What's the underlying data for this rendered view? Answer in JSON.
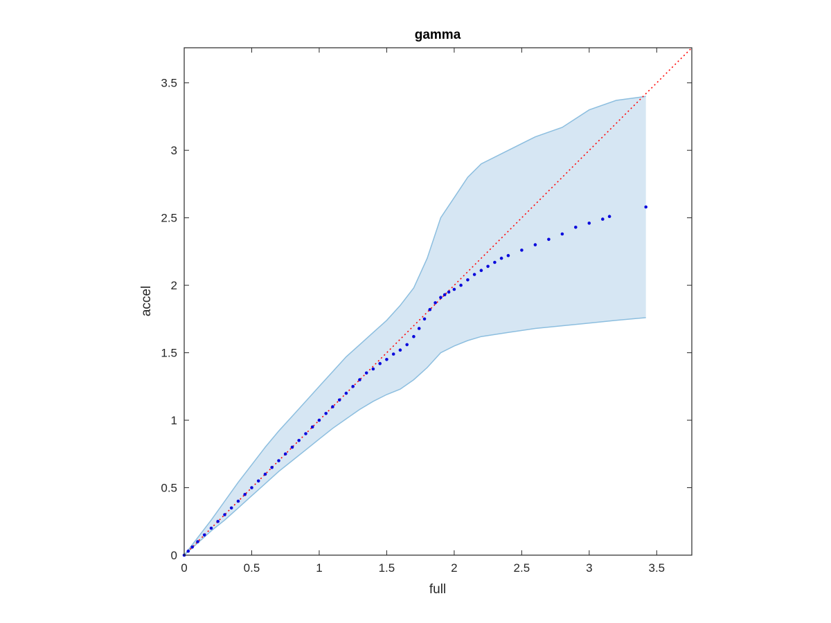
{
  "chart_data": {
    "type": "scatter",
    "title": "gamma",
    "xlabel": "full",
    "ylabel": "accel",
    "xlim": [
      0,
      3.76
    ],
    "ylim": [
      0,
      3.76
    ],
    "x_ticks": [
      0,
      0.5,
      1,
      1.5,
      2,
      2.5,
      3,
      3.5
    ],
    "y_ticks": [
      0,
      0.5,
      1,
      1.5,
      2,
      2.5,
      3,
      3.5
    ],
    "x_tick_labels": [
      "0",
      "0.5",
      "1",
      "1.5",
      "2",
      "2.5",
      "3",
      "3.5"
    ],
    "y_tick_labels": [
      "0",
      "0.5",
      "1",
      "1.5",
      "2",
      "2.5",
      "3",
      "3.5"
    ],
    "grid": false,
    "box": true,
    "colors": {
      "points": "#0a0adc",
      "band_fill": "#d6e6f3",
      "band_edge": "#8cbedf",
      "reference": "#ff0000",
      "axes": "#262626"
    },
    "band": {
      "x": [
        0,
        0.1,
        0.2,
        0.3,
        0.4,
        0.5,
        0.6,
        0.7,
        0.8,
        0.9,
        1.0,
        1.1,
        1.2,
        1.3,
        1.4,
        1.5,
        1.6,
        1.7,
        1.8,
        1.9,
        2.0,
        2.1,
        2.2,
        2.4,
        2.6,
        2.8,
        3.0,
        3.2,
        3.42
      ],
      "upper": [
        0,
        0.13,
        0.26,
        0.4,
        0.54,
        0.67,
        0.8,
        0.92,
        1.03,
        1.14,
        1.25,
        1.36,
        1.47,
        1.56,
        1.65,
        1.74,
        1.85,
        1.98,
        2.2,
        2.5,
        2.65,
        2.8,
        2.9,
        3.0,
        3.1,
        3.17,
        3.3,
        3.37,
        3.4
      ],
      "lower": [
        0,
        0.09,
        0.18,
        0.26,
        0.35,
        0.44,
        0.53,
        0.62,
        0.7,
        0.78,
        0.86,
        0.94,
        1.01,
        1.08,
        1.14,
        1.19,
        1.23,
        1.3,
        1.39,
        1.5,
        1.55,
        1.59,
        1.62,
        1.65,
        1.68,
        1.7,
        1.72,
        1.74,
        1.76
      ]
    },
    "reference_line": {
      "style": "dotted",
      "points": [
        [
          0,
          0
        ],
        [
          3.76,
          3.76
        ]
      ]
    },
    "points": {
      "x": [
        0,
        0.03,
        0.06,
        0.1,
        0.15,
        0.2,
        0.25,
        0.3,
        0.35,
        0.4,
        0.45,
        0.5,
        0.55,
        0.6,
        0.65,
        0.7,
        0.75,
        0.8,
        0.85,
        0.9,
        0.95,
        1.0,
        1.05,
        1.1,
        1.15,
        1.2,
        1.25,
        1.3,
        1.35,
        1.4,
        1.45,
        1.5,
        1.55,
        1.6,
        1.65,
        1.7,
        1.74,
        1.78,
        1.82,
        1.86,
        1.9,
        1.93,
        1.96,
        2.0,
        2.05,
        2.1,
        2.15,
        2.2,
        2.25,
        2.3,
        2.35,
        2.4,
        2.5,
        2.6,
        2.7,
        2.8,
        2.9,
        3.0,
        3.1,
        3.15,
        3.42
      ],
      "y": [
        0,
        0.03,
        0.06,
        0.1,
        0.15,
        0.2,
        0.25,
        0.3,
        0.35,
        0.4,
        0.45,
        0.5,
        0.55,
        0.6,
        0.65,
        0.7,
        0.75,
        0.8,
        0.85,
        0.9,
        0.95,
        1.0,
        1.05,
        1.1,
        1.15,
        1.2,
        1.25,
        1.3,
        1.35,
        1.38,
        1.42,
        1.45,
        1.49,
        1.52,
        1.56,
        1.62,
        1.68,
        1.75,
        1.82,
        1.87,
        1.91,
        1.93,
        1.95,
        1.97,
        2.0,
        2.04,
        2.08,
        2.11,
        2.14,
        2.17,
        2.2,
        2.22,
        2.26,
        2.3,
        2.34,
        2.38,
        2.43,
        2.46,
        2.49,
        2.51,
        2.58
      ]
    }
  }
}
